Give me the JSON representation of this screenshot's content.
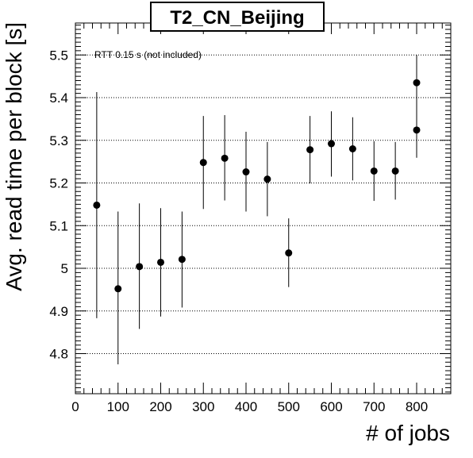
{
  "chart_data": {
    "type": "scatter",
    "title": "T2_CN_Beijing",
    "xlabel": "# of jobs",
    "ylabel": "Avg. read time per block [s]",
    "annotation": "RTT 0.15 s (not included)",
    "xlim": [
      0,
      880
    ],
    "ylim": [
      4.7,
      5.57
    ],
    "xticks": [
      0,
      100,
      200,
      300,
      400,
      500,
      600,
      700,
      800
    ],
    "xtick_labels": [
      "0",
      "100",
      "200",
      "300",
      "400",
      "500",
      "600",
      "700",
      "800"
    ],
    "yticks": [
      4.8,
      4.9,
      5.0,
      5.1,
      5.2,
      5.3,
      5.4,
      5.5
    ],
    "ytick_labels": [
      "4.8",
      "4.9",
      "5",
      "5.1",
      "5.2",
      "5.3",
      "5.4",
      "5.5"
    ],
    "grid": "horizontal dotted",
    "series": [
      {
        "marker_color": "#000000",
        "points": [
          {
            "x": 50,
            "y": 5.148,
            "ylow": 4.883,
            "yhigh": 5.413
          },
          {
            "x": 100,
            "y": 4.952,
            "ylow": 4.775,
            "yhigh": 5.133
          },
          {
            "x": 150,
            "y": 5.004,
            "ylow": 4.858,
            "yhigh": 5.152
          },
          {
            "x": 200,
            "y": 5.014,
            "ylow": 4.887,
            "yhigh": 5.141
          },
          {
            "x": 250,
            "y": 5.021,
            "ylow": 4.908,
            "yhigh": 5.133
          },
          {
            "x": 300,
            "y": 5.248,
            "ylow": 5.139,
            "yhigh": 5.357
          },
          {
            "x": 350,
            "y": 5.258,
            "ylow": 5.159,
            "yhigh": 5.359
          },
          {
            "x": 400,
            "y": 5.226,
            "ylow": 5.133,
            "yhigh": 5.32
          },
          {
            "x": 450,
            "y": 5.209,
            "ylow": 5.122,
            "yhigh": 5.296
          },
          {
            "x": 500,
            "y": 5.036,
            "ylow": 4.956,
            "yhigh": 5.117
          },
          {
            "x": 550,
            "y": 5.278,
            "ylow": 5.199,
            "yhigh": 5.357
          },
          {
            "x": 600,
            "y": 5.292,
            "ylow": 5.215,
            "yhigh": 5.368
          },
          {
            "x": 650,
            "y": 5.28,
            "ylow": 5.206,
            "yhigh": 5.354
          },
          {
            "x": 700,
            "y": 5.228,
            "ylow": 5.158,
            "yhigh": 5.298
          },
          {
            "x": 750,
            "y": 5.228,
            "ylow": 5.161,
            "yhigh": 5.296
          },
          {
            "x": 800,
            "y": 5.435,
            "ylow": 5.371,
            "yhigh": 5.5
          },
          {
            "x": 800,
            "y": 5.324,
            "ylow": 5.259,
            "yhigh": 5.388
          }
        ]
      }
    ]
  }
}
